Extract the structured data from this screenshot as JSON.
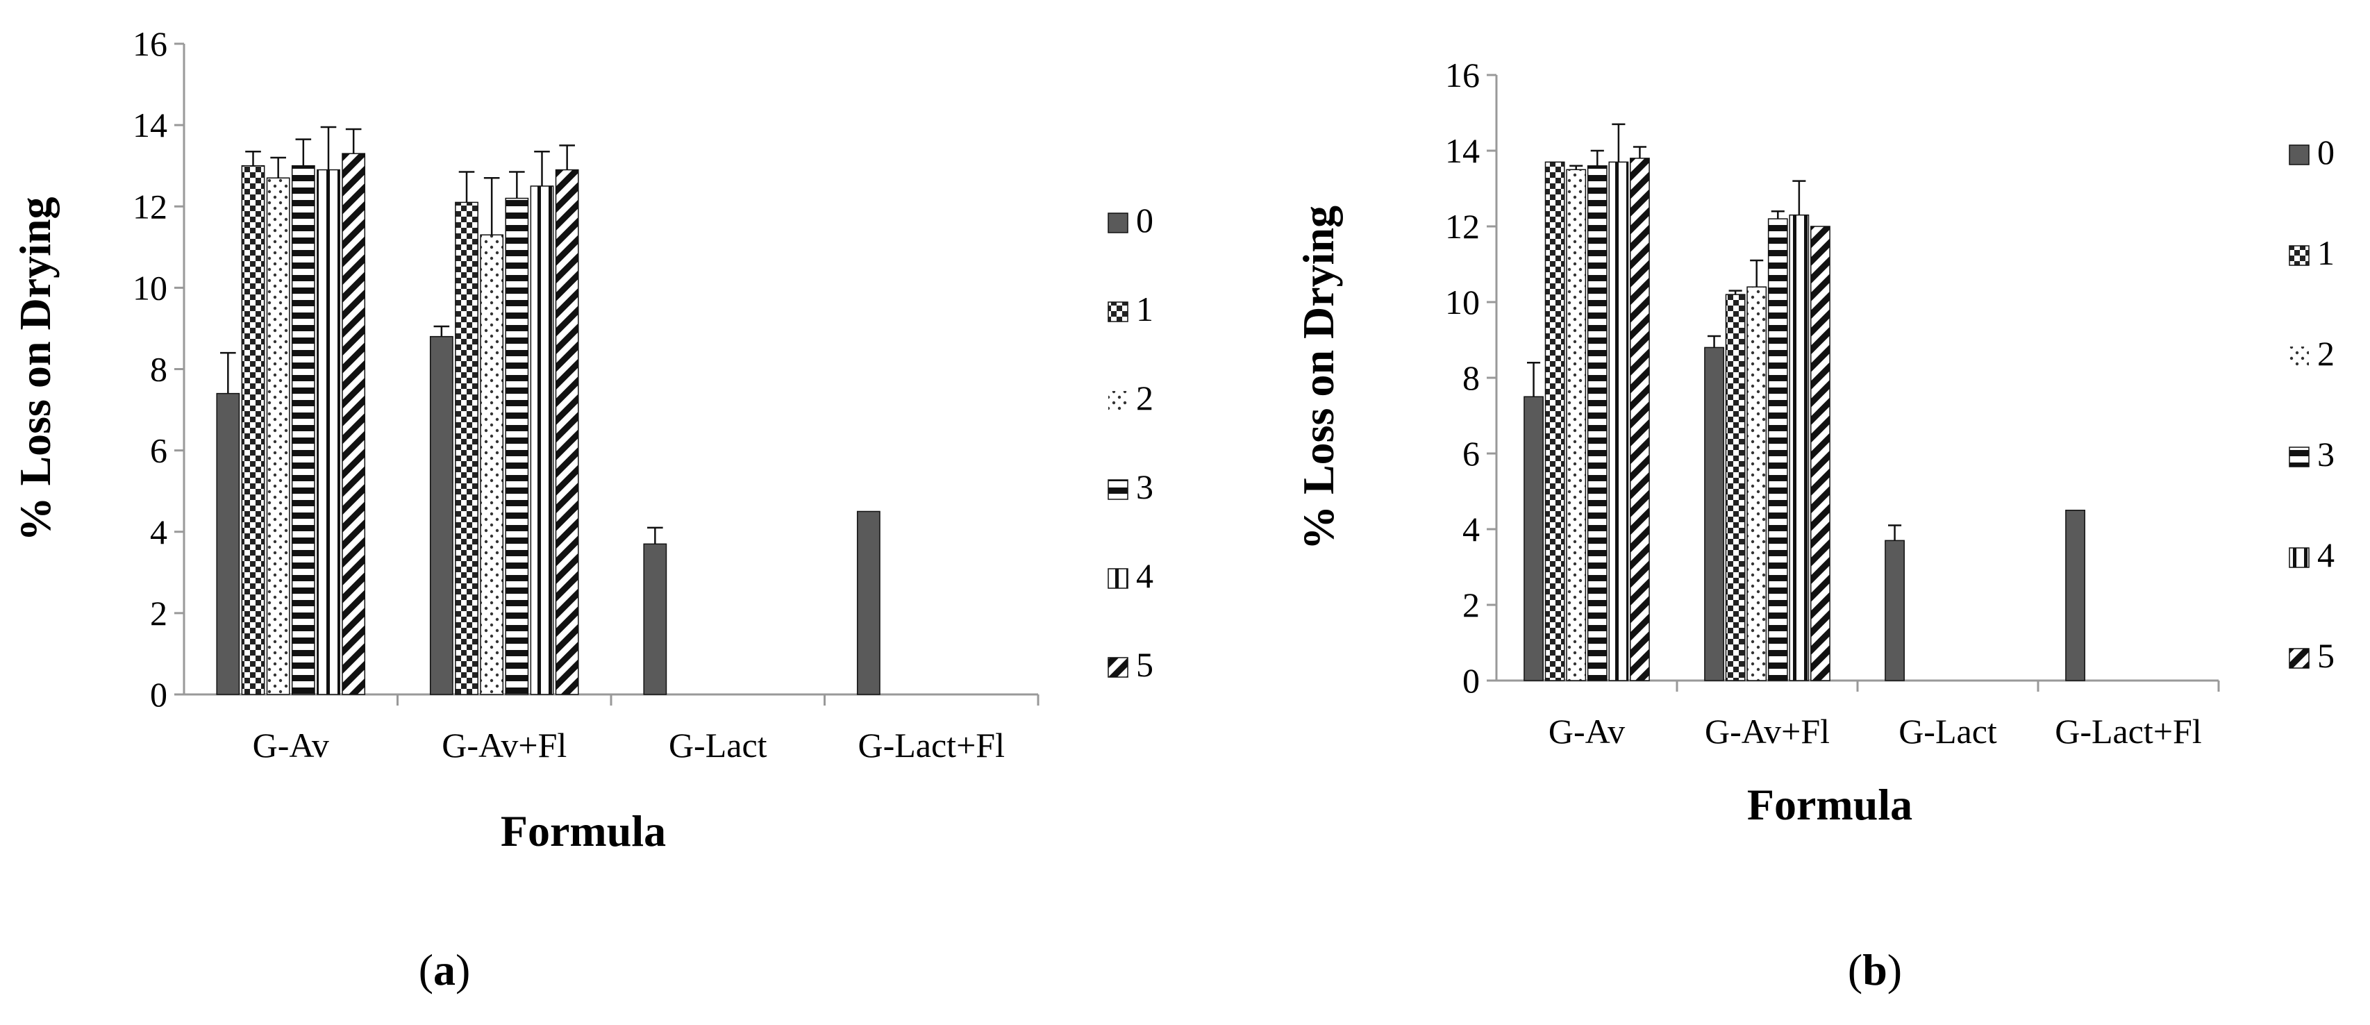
{
  "chart_data": [
    {
      "type": "bar",
      "panel_label": "a",
      "xlabel": "Formula",
      "ylabel": "% Loss on Drying",
      "ylim": [
        0,
        16
      ],
      "yticks": [
        0,
        2,
        4,
        6,
        8,
        10,
        12,
        14,
        16
      ],
      "categories": [
        "G-Av",
        "G-Av+Fl",
        "G-Lact",
        "G-Lact+Fl"
      ],
      "legend_position": "right",
      "series": [
        {
          "name": "0",
          "pattern": "solid-gray",
          "values": [
            7.4,
            8.8,
            3.7,
            4.5
          ],
          "errors": [
            1.0,
            0.25,
            0.4,
            0
          ]
        },
        {
          "name": "1",
          "pattern": "checker",
          "values": [
            13.0,
            12.1,
            null,
            null
          ],
          "errors": [
            0.35,
            0.75,
            null,
            null
          ]
        },
        {
          "name": "2",
          "pattern": "dots",
          "values": [
            12.7,
            11.3,
            null,
            null
          ],
          "errors": [
            0.5,
            1.4,
            null,
            null
          ]
        },
        {
          "name": "3",
          "pattern": "horizontal-stripes",
          "values": [
            13.0,
            12.2,
            null,
            null
          ],
          "errors": [
            0.65,
            0.65,
            null,
            null
          ]
        },
        {
          "name": "4",
          "pattern": "vertical-stripes",
          "values": [
            12.9,
            12.5,
            null,
            null
          ],
          "errors": [
            1.05,
            0.85,
            null,
            null
          ]
        },
        {
          "name": "5",
          "pattern": "diagonal-stripes",
          "values": [
            13.3,
            12.9,
            null,
            null
          ],
          "errors": [
            0.6,
            0.6,
            null,
            null
          ]
        }
      ]
    },
    {
      "type": "bar",
      "panel_label": "b",
      "xlabel": "Formula",
      "ylabel": "% Loss on Drying",
      "ylim": [
        0,
        16
      ],
      "yticks": [
        0,
        2,
        4,
        6,
        8,
        10,
        12,
        14,
        16
      ],
      "categories": [
        "G-Av",
        "G-Av+Fl",
        "G-Lact",
        "G-Lact+Fl"
      ],
      "legend_position": "right",
      "series": [
        {
          "name": "0",
          "pattern": "solid-gray",
          "values": [
            7.5,
            8.8,
            3.7,
            4.5
          ],
          "errors": [
            0.9,
            0.3,
            0.4,
            0
          ]
        },
        {
          "name": "1",
          "pattern": "checker",
          "values": [
            13.7,
            10.2,
            null,
            null
          ],
          "errors": [
            0,
            0.1,
            null,
            null
          ]
        },
        {
          "name": "2",
          "pattern": "dots",
          "values": [
            13.5,
            10.4,
            null,
            null
          ],
          "errors": [
            0.1,
            0.7,
            null,
            null
          ]
        },
        {
          "name": "3",
          "pattern": "horizontal-stripes",
          "values": [
            13.6,
            12.2,
            null,
            null
          ],
          "errors": [
            0.4,
            0.2,
            null,
            null
          ]
        },
        {
          "name": "4",
          "pattern": "vertical-stripes",
          "values": [
            13.7,
            12.3,
            null,
            null
          ],
          "errors": [
            1.0,
            0.9,
            null,
            null
          ]
        },
        {
          "name": "5",
          "pattern": "diagonal-stripes",
          "values": [
            13.8,
            12.0,
            null,
            null
          ],
          "errors": [
            0.3,
            0,
            null,
            null
          ]
        }
      ]
    }
  ]
}
